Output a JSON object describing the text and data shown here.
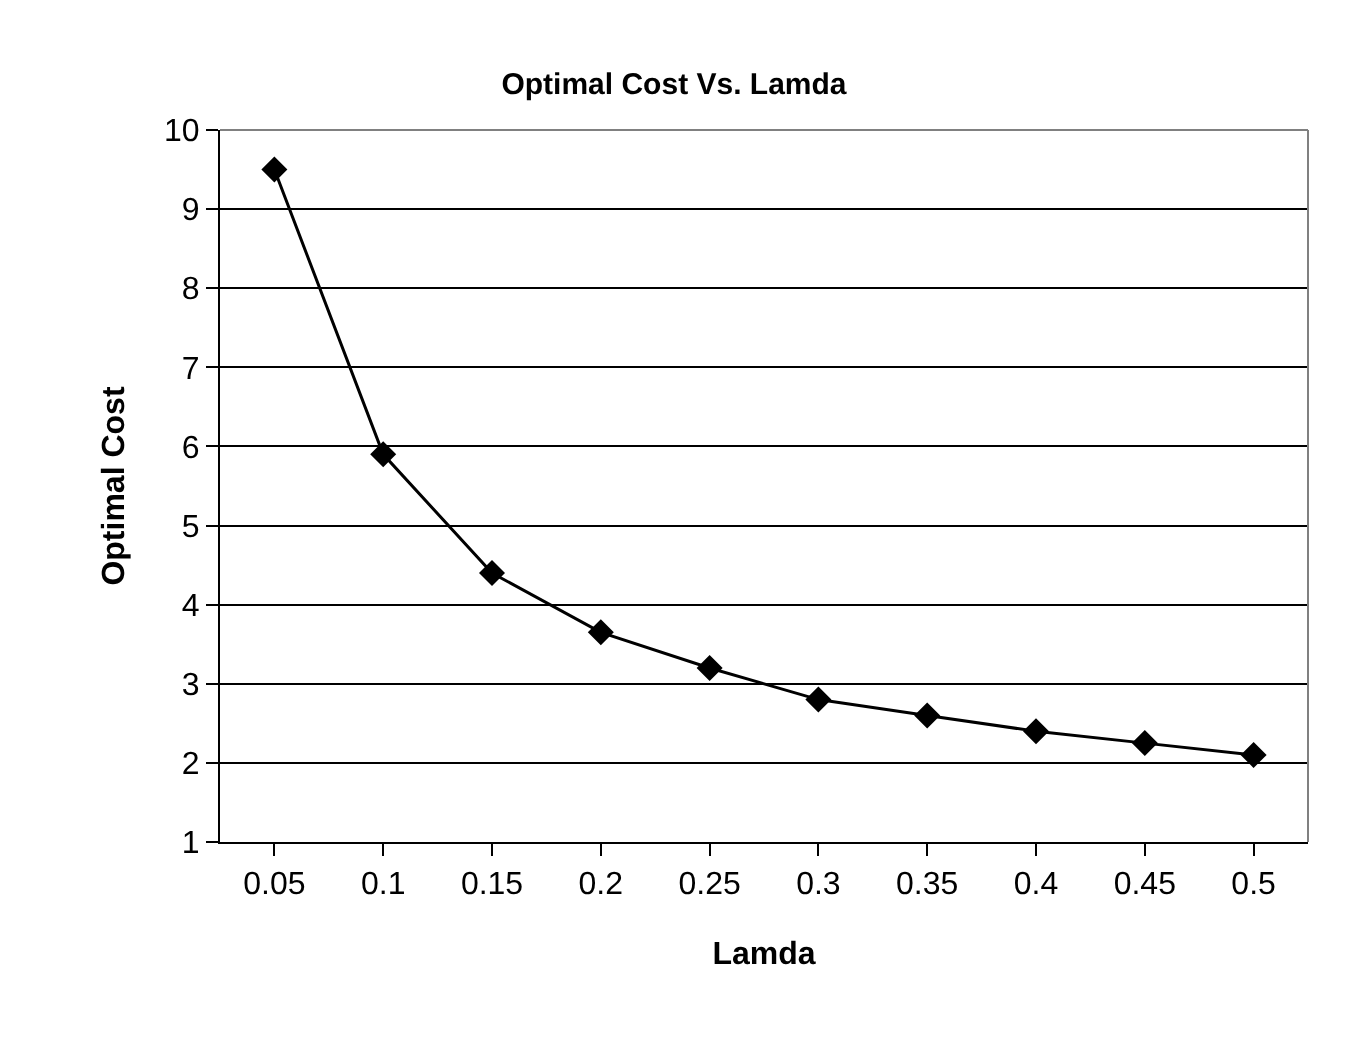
{
  "chart_data": {
    "type": "line",
    "title": "Optimal Cost Vs. Lamda",
    "xlabel": "Lamda",
    "ylabel": "Optimal Cost",
    "categories": [
      "0.05",
      "0.1",
      "0.15",
      "0.2",
      "0.25",
      "0.3",
      "0.35",
      "0.4",
      "0.45",
      "0.5"
    ],
    "series": [
      {
        "color": "#000000",
        "values": [
          9.5,
          5.9,
          4.4,
          3.65,
          3.2,
          2.8,
          2.6,
          2.4,
          2.25,
          2.1
        ]
      }
    ],
    "ylim": [
      1,
      10
    ],
    "yticks": [
      1,
      2,
      3,
      4,
      5,
      6,
      7,
      8,
      9,
      10
    ],
    "grid": "y",
    "marker": "diamond",
    "line_style": "solid"
  }
}
